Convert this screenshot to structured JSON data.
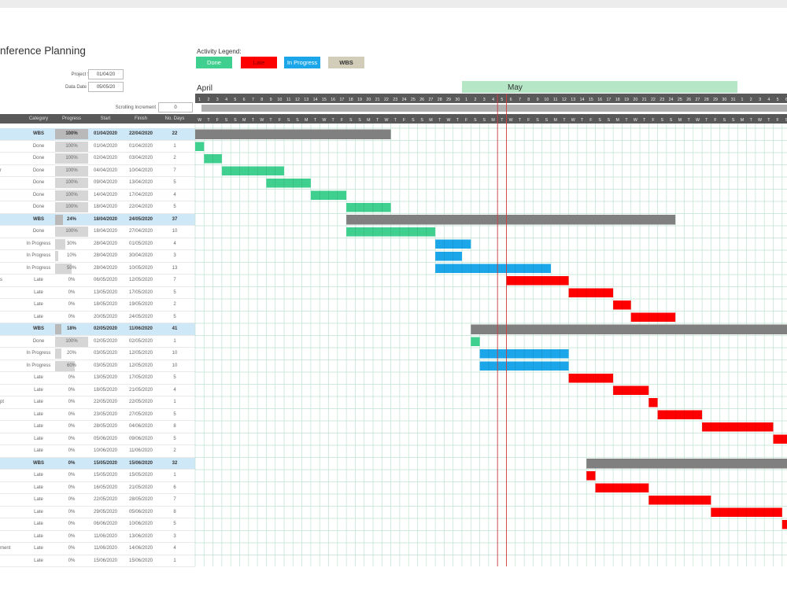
{
  "title": "nference Planning",
  "project": {
    "start_label": "Project Start Date",
    "start_value": "01/04/20",
    "data_label": "Data Date",
    "data_value": "05/05/20",
    "scroll_label": "Scrolling Increment",
    "scroll_value": "0"
  },
  "legend": {
    "title": "Activity Legend:",
    "items": [
      {
        "label": "Done",
        "color": "#3fcf8e"
      },
      {
        "label": "Late",
        "color": "#ff0000"
      },
      {
        "label": "In Progress",
        "color": "#1aa6e8"
      },
      {
        "label": "WBS",
        "color": "#d2cdb8"
      }
    ]
  },
  "colors": {
    "done": "#3fcf8e",
    "late": "#ff0000",
    "progress": "#1aa6e8",
    "wbs": "#808080",
    "grid": "#bfe3d2",
    "today": "#d23c3c"
  },
  "months": [
    {
      "name": "April",
      "start_day": 1
    },
    {
      "name": "May",
      "start_day": 31
    }
  ],
  "day_numbers": [
    "1",
    "2",
    "3",
    "4",
    "5",
    "6",
    "7",
    "8",
    "9",
    "10",
    "11",
    "12",
    "13",
    "14",
    "15",
    "16",
    "17",
    "18",
    "19",
    "20",
    "21",
    "22",
    "23",
    "24",
    "25",
    "26",
    "27",
    "28",
    "29",
    "30",
    "1",
    "2",
    "3",
    "4",
    "5",
    "6",
    "7",
    "8",
    "9",
    "10",
    "11",
    "12",
    "13",
    "14",
    "15",
    "16",
    "17",
    "18",
    "19",
    "20",
    "21",
    "22",
    "23",
    "24",
    "25",
    "26",
    "27",
    "28",
    "29",
    "30",
    "31",
    "1",
    "2",
    "3",
    "4",
    "5",
    "6"
  ],
  "weekday_letters": [
    "W",
    "T",
    "F",
    "S",
    "S",
    "M",
    "T"
  ],
  "table_headers": [
    "Category",
    "Progress",
    "Start",
    "Finish",
    "No. Days"
  ],
  "row_labels": [
    "",
    "",
    "",
    "r",
    "",
    "",
    "",
    "",
    "",
    "",
    "",
    "",
    "s",
    "",
    "",
    "",
    "",
    "",
    "",
    "",
    "",
    "",
    "pt",
    "",
    "",
    "",
    "",
    "",
    "",
    "",
    "",
    "",
    "",
    "",
    "ment"
  ],
  "rows": [
    {
      "category": "WBS",
      "progress": "100%",
      "start": "01/04/2020",
      "finish": "22/04/2020",
      "days": "22",
      "wbs": true
    },
    {
      "category": "Done",
      "progress": "100%",
      "start": "01/04/2020",
      "finish": "01/04/2020",
      "days": "1"
    },
    {
      "category": "Done",
      "progress": "100%",
      "start": "02/04/2020",
      "finish": "03/04/2020",
      "days": "2"
    },
    {
      "category": "Done",
      "progress": "100%",
      "start": "04/04/2020",
      "finish": "10/04/2020",
      "days": "7"
    },
    {
      "category": "Done",
      "progress": "100%",
      "start": "09/04/2020",
      "finish": "13/04/2020",
      "days": "5"
    },
    {
      "category": "Done",
      "progress": "100%",
      "start": "14/04/2020",
      "finish": "17/04/2020",
      "days": "4"
    },
    {
      "category": "Done",
      "progress": "100%",
      "start": "18/04/2020",
      "finish": "22/04/2020",
      "days": "5"
    },
    {
      "category": "WBS",
      "progress": "24%",
      "start": "18/04/2020",
      "finish": "24/05/2020",
      "days": "37",
      "wbs": true
    },
    {
      "category": "Done",
      "progress": "100%",
      "start": "18/04/2020",
      "finish": "27/04/2020",
      "days": "10"
    },
    {
      "category": "In Progress",
      "progress": "30%",
      "start": "28/04/2020",
      "finish": "01/05/2020",
      "days": "4"
    },
    {
      "category": "In Progress",
      "progress": "10%",
      "start": "28/04/2020",
      "finish": "30/04/2020",
      "days": "3"
    },
    {
      "category": "In Progress",
      "progress": "50%",
      "start": "28/04/2020",
      "finish": "10/05/2020",
      "days": "13"
    },
    {
      "category": "Late",
      "progress": "0%",
      "start": "06/05/2020",
      "finish": "12/05/2020",
      "days": "7"
    },
    {
      "category": "Late",
      "progress": "0%",
      "start": "13/05/2020",
      "finish": "17/05/2020",
      "days": "5"
    },
    {
      "category": "Late",
      "progress": "0%",
      "start": "18/05/2020",
      "finish": "19/05/2020",
      "days": "2"
    },
    {
      "category": "Late",
      "progress": "0%",
      "start": "20/05/2020",
      "finish": "24/05/2020",
      "days": "5"
    },
    {
      "category": "WBS",
      "progress": "18%",
      "start": "02/05/2020",
      "finish": "11/06/2020",
      "days": "41",
      "wbs": true
    },
    {
      "category": "Done",
      "progress": "100%",
      "start": "02/05/2020",
      "finish": "02/05/2020",
      "days": "1"
    },
    {
      "category": "In Progress",
      "progress": "20%",
      "start": "03/05/2020",
      "finish": "12/05/2020",
      "days": "10"
    },
    {
      "category": "In Progress",
      "progress": "60%",
      "start": "03/05/2020",
      "finish": "12/05/2020",
      "days": "10"
    },
    {
      "category": "Late",
      "progress": "0%",
      "start": "13/05/2020",
      "finish": "17/05/2020",
      "days": "5"
    },
    {
      "category": "Late",
      "progress": "0%",
      "start": "18/05/2020",
      "finish": "21/05/2020",
      "days": "4"
    },
    {
      "category": "Late",
      "progress": "0%",
      "start": "22/05/2020",
      "finish": "22/05/2020",
      "days": "1"
    },
    {
      "category": "Late",
      "progress": "0%",
      "start": "23/05/2020",
      "finish": "27/05/2020",
      "days": "5"
    },
    {
      "category": "Late",
      "progress": "0%",
      "start": "28/05/2020",
      "finish": "04/06/2020",
      "days": "8"
    },
    {
      "category": "Late",
      "progress": "0%",
      "start": "05/06/2020",
      "finish": "09/06/2020",
      "days": "5"
    },
    {
      "category": "Late",
      "progress": "0%",
      "start": "10/06/2020",
      "finish": "11/06/2020",
      "days": "2"
    },
    {
      "category": "WBS",
      "progress": "0%",
      "start": "15/05/2020",
      "finish": "15/06/2020",
      "days": "32",
      "wbs": true
    },
    {
      "category": "Late",
      "progress": "0%",
      "start": "15/05/2020",
      "finish": "15/05/2020",
      "days": "1"
    },
    {
      "category": "Late",
      "progress": "0%",
      "start": "16/05/2020",
      "finish": "21/05/2020",
      "days": "6"
    },
    {
      "category": "Late",
      "progress": "0%",
      "start": "22/05/2020",
      "finish": "28/05/2020",
      "days": "7"
    },
    {
      "category": "Late",
      "progress": "0%",
      "start": "29/05/2020",
      "finish": "05/06/2020",
      "days": "8"
    },
    {
      "category": "Late",
      "progress": "0%",
      "start": "06/06/2020",
      "finish": "10/06/2020",
      "days": "5"
    },
    {
      "category": "Late",
      "progress": "0%",
      "start": "11/06/2020",
      "finish": "13/06/2020",
      "days": "3"
    },
    {
      "category": "Late",
      "progress": "0%",
      "start": "11/06/2020",
      "finish": "14/06/2020",
      "days": "4"
    },
    {
      "category": "Late",
      "progress": "0%",
      "start": "15/06/2020",
      "finish": "15/06/2020",
      "days": "1"
    }
  ]
}
